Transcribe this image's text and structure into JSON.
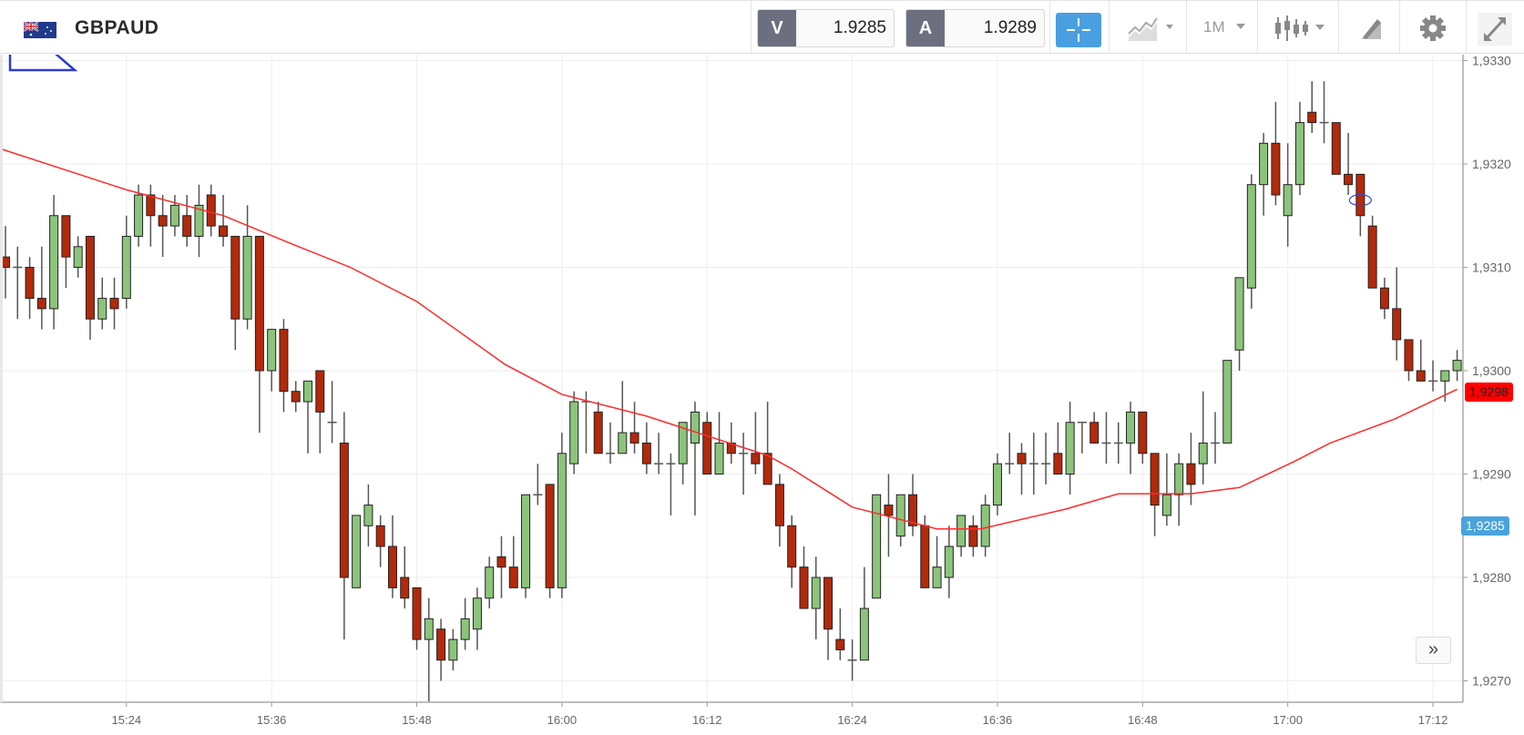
{
  "header": {
    "symbol": "GBPAUD",
    "sell_tag": "V",
    "sell_price": "1.9285",
    "buy_tag": "A",
    "buy_price": "1.9289",
    "timeframe": "1M",
    "icons": [
      "gb-au-flag-icon",
      "crosshair-icon",
      "chart-type-icon",
      "candlestick-icon",
      "drawing-tools-icon",
      "gear-icon",
      "expand-icon"
    ]
  },
  "scroll_button": "»",
  "colors": {
    "up": "#8cc47c",
    "down": "#b3290b",
    "ma": "#ff2a2a",
    "bid_badge": "#4aa3dc",
    "last_badge": "#ff0000",
    "accent": "#4a9fe0"
  },
  "chart_data": {
    "type": "candlestick",
    "title": "GBPAUD",
    "interval_minutes": 1,
    "start_time": "15:14",
    "ylim": [
      1.9265,
      1.9333
    ],
    "y_ticks": [
      {
        "value": 1.933,
        "label": "1,9330"
      },
      {
        "value": 1.932,
        "label": "1,9320"
      },
      {
        "value": 1.931,
        "label": "1,9310"
      },
      {
        "value": 1.93,
        "label": "1,9300"
      },
      {
        "value": 1.929,
        "label": "1,9290"
      },
      {
        "value": 1.928,
        "label": "1,9280"
      },
      {
        "value": 1.927,
        "label": "1,9270"
      }
    ],
    "x_ticks": [
      {
        "index": 10,
        "label": "15:24"
      },
      {
        "index": 22,
        "label": "15:36"
      },
      {
        "index": 34,
        "label": "15:48"
      },
      {
        "index": 46,
        "label": "16:00"
      },
      {
        "index": 58,
        "label": "16:12"
      },
      {
        "index": 70,
        "label": "16:24"
      },
      {
        "index": 82,
        "label": "16:36"
      },
      {
        "index": 94,
        "label": "16:48"
      },
      {
        "index": 106,
        "label": "17:00"
      },
      {
        "index": 118,
        "label": "17:12"
      }
    ],
    "last_price": {
      "value": 1.9298,
      "label": "1,9298"
    },
    "bid_price": {
      "value": 1.9285,
      "label": "1,9285"
    },
    "selected_index": 112,
    "ohlc": [
      [
        1.9311,
        1.9314,
        1.9307,
        1.931
      ],
      [
        1.931,
        1.9312,
        1.9305,
        1.931
      ],
      [
        1.931,
        1.9311,
        1.9305,
        1.9307
      ],
      [
        1.9307,
        1.9312,
        1.9304,
        1.9306
      ],
      [
        1.9306,
        1.9317,
        1.9304,
        1.9315
      ],
      [
        1.9315,
        1.9315,
        1.9308,
        1.9311
      ],
      [
        1.931,
        1.9313,
        1.9309,
        1.9312
      ],
      [
        1.9313,
        1.9313,
        1.9303,
        1.9305
      ],
      [
        1.9305,
        1.9309,
        1.9304,
        1.9307
      ],
      [
        1.9307,
        1.9309,
        1.9304,
        1.9306
      ],
      [
        1.9307,
        1.9315,
        1.9306,
        1.9313
      ],
      [
        1.9313,
        1.9318,
        1.9312,
        1.9317
      ],
      [
        1.9317,
        1.9318,
        1.9312,
        1.9315
      ],
      [
        1.9315,
        1.9317,
        1.9311,
        1.9314
      ],
      [
        1.9314,
        1.9317,
        1.9313,
        1.9316
      ],
      [
        1.9315,
        1.9317,
        1.9312,
        1.9313
      ],
      [
        1.9313,
        1.9318,
        1.9311,
        1.9316
      ],
      [
        1.9317,
        1.9318,
        1.9313,
        1.9314
      ],
      [
        1.9314,
        1.9317,
        1.9312,
        1.9313
      ],
      [
        1.9313,
        1.9313,
        1.9302,
        1.9305
      ],
      [
        1.9305,
        1.9316,
        1.9304,
        1.9313
      ],
      [
        1.9313,
        1.9313,
        1.9294,
        1.93
      ],
      [
        1.93,
        1.9304,
        1.9298,
        1.9304
      ],
      [
        1.9304,
        1.9305,
        1.9296,
        1.9298
      ],
      [
        1.9298,
        1.9299,
        1.9296,
        1.9297
      ],
      [
        1.9297,
        1.9299,
        1.9292,
        1.9299
      ],
      [
        1.93,
        1.93,
        1.9292,
        1.9296
      ],
      [
        1.9295,
        1.9299,
        1.9293,
        1.9295
      ],
      [
        1.9293,
        1.9296,
        1.9274,
        1.928
      ],
      [
        1.9279,
        1.9286,
        1.9279,
        1.9286
      ],
      [
        1.9285,
        1.9289,
        1.9283,
        1.9287
      ],
      [
        1.9285,
        1.9286,
        1.9281,
        1.9283
      ],
      [
        1.9283,
        1.9286,
        1.9278,
        1.9279
      ],
      [
        1.928,
        1.9283,
        1.9277,
        1.9278
      ],
      [
        1.9279,
        1.9279,
        1.9273,
        1.9274
      ],
      [
        1.9274,
        1.9278,
        1.9268,
        1.9276
      ],
      [
        1.9275,
        1.9276,
        1.927,
        1.9272
      ],
      [
        1.9272,
        1.9275,
        1.9271,
        1.9274
      ],
      [
        1.9274,
        1.9278,
        1.9273,
        1.9276
      ],
      [
        1.9275,
        1.9279,
        1.9273,
        1.9278
      ],
      [
        1.9278,
        1.9282,
        1.9277,
        1.9281
      ],
      [
        1.9282,
        1.9284,
        1.9278,
        1.9281
      ],
      [
        1.9281,
        1.9284,
        1.9279,
        1.9279
      ],
      [
        1.9279,
        1.9288,
        1.9278,
        1.9288
      ],
      [
        1.9288,
        1.9291,
        1.9287,
        1.9288
      ],
      [
        1.9289,
        1.9289,
        1.9278,
        1.9279
      ],
      [
        1.9279,
        1.9294,
        1.9278,
        1.9292
      ],
      [
        1.9291,
        1.9298,
        1.929,
        1.9297
      ],
      [
        1.9297,
        1.9298,
        1.9292,
        1.9297
      ],
      [
        1.9296,
        1.9297,
        1.9292,
        1.9292
      ],
      [
        1.9292,
        1.9295,
        1.9291,
        1.9292
      ],
      [
        1.9292,
        1.9299,
        1.9292,
        1.9294
      ],
      [
        1.9294,
        1.9297,
        1.9292,
        1.9293
      ],
      [
        1.9293,
        1.9295,
        1.929,
        1.9291
      ],
      [
        1.9291,
        1.9294,
        1.929,
        1.9291
      ],
      [
        1.9291,
        1.9292,
        1.9286,
        1.9291
      ],
      [
        1.9291,
        1.9295,
        1.9289,
        1.9295
      ],
      [
        1.9293,
        1.9297,
        1.9286,
        1.9296
      ],
      [
        1.9295,
        1.9296,
        1.929,
        1.929
      ],
      [
        1.929,
        1.9296,
        1.929,
        1.9293
      ],
      [
        1.9293,
        1.9295,
        1.9291,
        1.9292
      ],
      [
        1.9292,
        1.9294,
        1.9288,
        1.9292
      ],
      [
        1.9292,
        1.9296,
        1.929,
        1.9291
      ],
      [
        1.9292,
        1.9297,
        1.9289,
        1.9289
      ],
      [
        1.9289,
        1.929,
        1.9283,
        1.9285
      ],
      [
        1.9285,
        1.9286,
        1.9279,
        1.9281
      ],
      [
        1.9281,
        1.9283,
        1.9277,
        1.9277
      ],
      [
        1.9277,
        1.9282,
        1.9274,
        1.928
      ],
      [
        1.928,
        1.928,
        1.9272,
        1.9275
      ],
      [
        1.9274,
        1.9277,
        1.9272,
        1.9273
      ],
      [
        1.9272,
        1.9274,
        1.927,
        1.9272
      ],
      [
        1.9272,
        1.9281,
        1.9272,
        1.9277
      ],
      [
        1.9278,
        1.9288,
        1.9278,
        1.9288
      ],
      [
        1.9287,
        1.929,
        1.9282,
        1.9286
      ],
      [
        1.9284,
        1.9288,
        1.9283,
        1.9288
      ],
      [
        1.9288,
        1.929,
        1.9284,
        1.9285
      ],
      [
        1.9285,
        1.9286,
        1.9279,
        1.9279
      ],
      [
        1.9279,
        1.9284,
        1.9279,
        1.9281
      ],
      [
        1.928,
        1.9285,
        1.9278,
        1.9283
      ],
      [
        1.9283,
        1.9286,
        1.9282,
        1.9286
      ],
      [
        1.9285,
        1.9286,
        1.9282,
        1.9283
      ],
      [
        1.9283,
        1.9288,
        1.9282,
        1.9287
      ],
      [
        1.9287,
        1.9292,
        1.9286,
        1.9291
      ],
      [
        1.9291,
        1.9294,
        1.929,
        1.9291
      ],
      [
        1.9292,
        1.9293,
        1.9288,
        1.9291
      ],
      [
        1.9291,
        1.9294,
        1.9288,
        1.9291
      ],
      [
        1.9291,
        1.9294,
        1.9289,
        1.9291
      ],
      [
        1.9292,
        1.9295,
        1.929,
        1.929
      ],
      [
        1.929,
        1.9297,
        1.9288,
        1.9295
      ],
      [
        1.9295,
        1.9295,
        1.9292,
        1.9295
      ],
      [
        1.9295,
        1.9296,
        1.9293,
        1.9293
      ],
      [
        1.9293,
        1.9296,
        1.9291,
        1.9293
      ],
      [
        1.9293,
        1.9295,
        1.9291,
        1.9293
      ],
      [
        1.9293,
        1.9297,
        1.929,
        1.9296
      ],
      [
        1.9296,
        1.9296,
        1.9291,
        1.9292
      ],
      [
        1.9292,
        1.9292,
        1.9284,
        1.9287
      ],
      [
        1.9286,
        1.9292,
        1.9285,
        1.9288
      ],
      [
        1.9288,
        1.9292,
        1.9285,
        1.9291
      ],
      [
        1.9291,
        1.9294,
        1.9287,
        1.9289
      ],
      [
        1.9291,
        1.9298,
        1.9289,
        1.9293
      ],
      [
        1.9293,
        1.9296,
        1.9291,
        1.9293
      ],
      [
        1.9293,
        1.9301,
        1.9293,
        1.9301
      ],
      [
        1.9302,
        1.9309,
        1.93,
        1.9309
      ],
      [
        1.9308,
        1.9319,
        1.9306,
        1.9318
      ],
      [
        1.9318,
        1.9323,
        1.9315,
        1.9322
      ],
      [
        1.9322,
        1.9326,
        1.9316,
        1.9317
      ],
      [
        1.9315,
        1.9322,
        1.9312,
        1.9318
      ],
      [
        1.9318,
        1.9326,
        1.9317,
        1.9324
      ],
      [
        1.9325,
        1.9328,
        1.9323,
        1.9324
      ],
      [
        1.9324,
        1.9328,
        1.9322,
        1.9324
      ],
      [
        1.9324,
        1.9324,
        1.9319,
        1.9319
      ],
      [
        1.9319,
        1.9323,
        1.9317,
        1.9318
      ],
      [
        1.9319,
        1.9319,
        1.9313,
        1.9315
      ],
      [
        1.9314,
        1.9315,
        1.9308,
        1.9308
      ],
      [
        1.9308,
        1.9309,
        1.9305,
        1.9306
      ],
      [
        1.9306,
        1.931,
        1.9301,
        1.9303
      ],
      [
        1.9303,
        1.9303,
        1.9299,
        1.93
      ],
      [
        1.93,
        1.9303,
        1.9299,
        1.9299
      ],
      [
        1.9299,
        1.9301,
        1.9298,
        1.9299
      ],
      [
        1.9299,
        1.93,
        1.9297,
        1.93
      ],
      [
        1.93,
        1.9302,
        1.9299,
        1.9301
      ]
    ],
    "moving_average": [
      [
        -0.5,
        1.93215
      ],
      [
        10,
        1.93175
      ],
      [
        18,
        1.9315
      ],
      [
        23.6,
        1.93123
      ],
      [
        28.5,
        1.931
      ],
      [
        34,
        1.93067
      ],
      [
        41.3,
        1.93006
      ],
      [
        46,
        1.92977
      ],
      [
        53,
        1.92956
      ],
      [
        63,
        1.92918
      ],
      [
        65,
        1.92905
      ],
      [
        70,
        1.92868
      ],
      [
        77,
        1.92847
      ],
      [
        80.6,
        1.92847
      ],
      [
        87.6,
        1.92866
      ],
      [
        92,
        1.92881
      ],
      [
        98,
        1.92881
      ],
      [
        102,
        1.92887
      ],
      [
        106.5,
        1.92912
      ],
      [
        109.5,
        1.9293
      ],
      [
        114.8,
        1.92953
      ],
      [
        120,
        1.92982
      ]
    ]
  }
}
